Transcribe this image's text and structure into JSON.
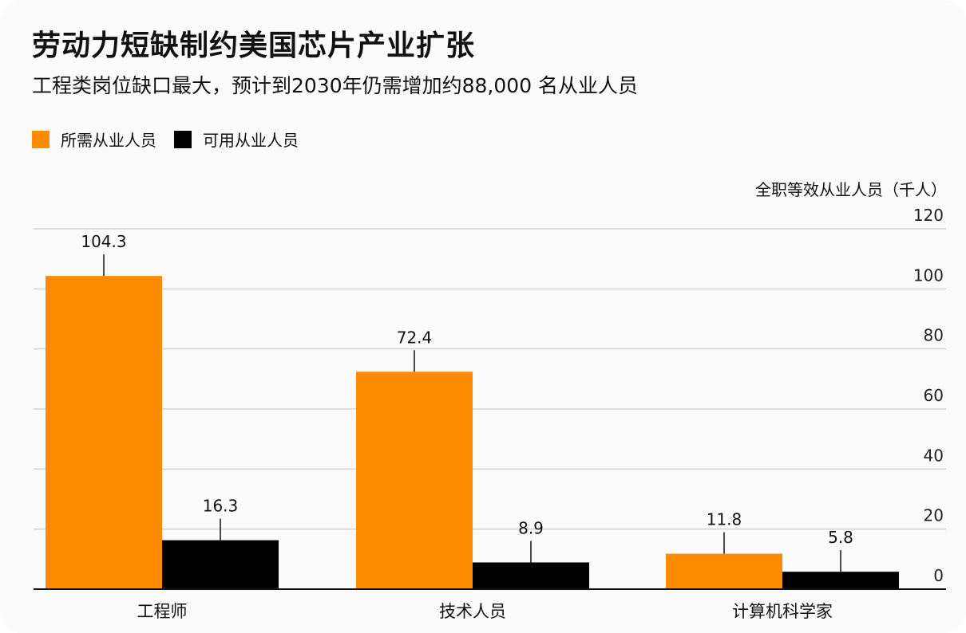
{
  "title": "劳动力短缺制约美国芯片产业扩张",
  "subtitle": "工程类岗位缺口最大，预计到2030年仍需增加约88,000 名从业人员",
  "legend": [
    {
      "label": "所需从业人员",
      "color": "#FF8C00"
    },
    {
      "label": "可用从业人员",
      "color": "#000000"
    }
  ],
  "colors": {
    "required": "#FF8C00",
    "available": "#000000",
    "grid": "#d4d4d4",
    "axis": "#111111"
  },
  "chart_data": {
    "type": "bar",
    "ylabel": "全职等效从业人员（千人）",
    "xlabel": "",
    "ylim": [
      0,
      120
    ],
    "y_ticks": [
      0,
      20,
      40,
      60,
      80,
      100,
      120
    ],
    "y_axis_position": "right",
    "grid": true,
    "legend_position": "top-left",
    "categories": [
      "工程师",
      "技术人员",
      "计算机科学家"
    ],
    "series": [
      {
        "name": "所需从业人员",
        "values": [
          104.3,
          72.4,
          11.8
        ],
        "labels": [
          "104.3",
          "72.4",
          "11.8"
        ]
      },
      {
        "name": "可用从业人员",
        "values": [
          16.3,
          8.9,
          5.8
        ],
        "labels": [
          "16.3",
          "8.9",
          "5.8"
        ]
      }
    ]
  }
}
